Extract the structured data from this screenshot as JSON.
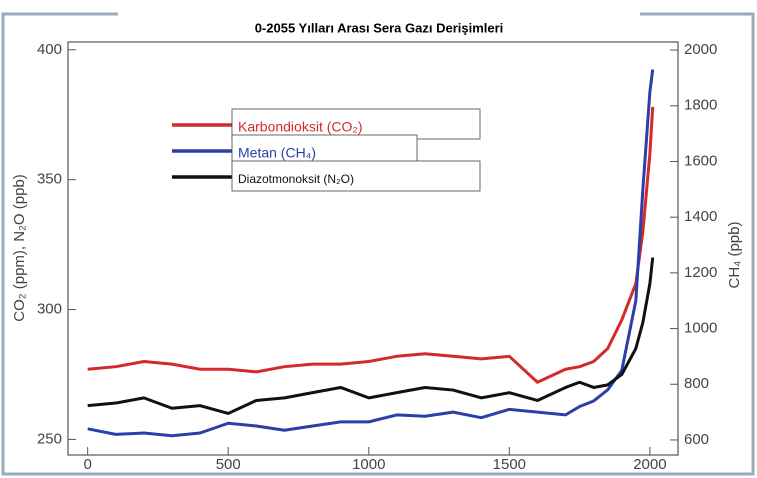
{
  "chart_data": {
    "type": "line",
    "title": "0-2055 Yılları Arası Sera Gazı Derişimleri",
    "ylabel": "CO₂ (ppm), N₂O (ppb)",
    "y2label": "CH₄ (ppb)",
    "xlim": [
      -70,
      2100
    ],
    "xticks": [
      0,
      500,
      1000,
      1500,
      2000
    ],
    "ylim": [
      244,
      403
    ],
    "yticks": [
      250,
      300,
      350,
      400
    ],
    "y2lim": [
      546,
      2029
    ],
    "y2ticks": [
      600,
      800,
      1000,
      1200,
      1400,
      1600,
      1800,
      2000
    ],
    "x": [
      0,
      100,
      200,
      300,
      400,
      500,
      600,
      700,
      800,
      900,
      1000,
      1100,
      1200,
      1300,
      1400,
      1500,
      1600,
      1700,
      1750,
      1800,
      1850,
      1900,
      1950,
      1975,
      2000,
      2010
    ],
    "series": [
      {
        "name": "Karbondioksit (CO₂)",
        "color": "#d42a2a",
        "axis": "y",
        "values": [
          277,
          278,
          280,
          279,
          277,
          277,
          276,
          278,
          279,
          279,
          280,
          282,
          283,
          282,
          281,
          282,
          272,
          277,
          278,
          280,
          285,
          296,
          310,
          330,
          360,
          378
        ]
      },
      {
        "name": "Metan (CH₄)",
        "color": "#2a3fa8",
        "axis": "y2",
        "values": [
          640,
          620,
          625,
          615,
          625,
          660,
          650,
          635,
          650,
          665,
          665,
          690,
          685,
          700,
          680,
          710,
          700,
          690,
          720,
          740,
          780,
          850,
          1100,
          1500,
          1850,
          1930
        ]
      },
      {
        "name": "Diazotmonoksit (N₂O)",
        "color": "#111111",
        "axis": "y",
        "values": [
          263,
          264,
          266,
          262,
          263,
          260,
          265,
          266,
          268,
          270,
          266,
          268,
          270,
          269,
          266,
          268,
          265,
          270,
          272,
          270,
          271,
          275,
          285,
          295,
          310,
          320
        ]
      }
    ]
  }
}
